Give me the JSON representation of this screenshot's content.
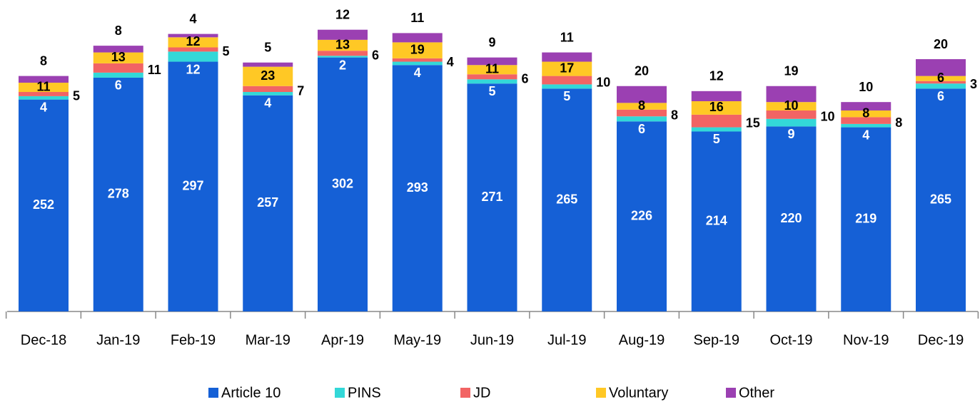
{
  "chart_data": {
    "type": "stacked_bar",
    "categories": [
      "Dec-18",
      "Jan-19",
      "Feb-19",
      "Mar-19",
      "Apr-19",
      "May-19",
      "Jun-19",
      "Jul-19",
      "Aug-19",
      "Sep-19",
      "Oct-19",
      "Nov-19",
      "Dec-19"
    ],
    "series": [
      {
        "name": "Article 10",
        "color": "#1560d6",
        "values": [
          252,
          278,
          297,
          257,
          302,
          293,
          271,
          265,
          226,
          214,
          220,
          219,
          265
        ]
      },
      {
        "name": "PINS",
        "color": "#33d8d8",
        "values": [
          4,
          6,
          12,
          4,
          2,
          4,
          5,
          5,
          6,
          5,
          9,
          4,
          6
        ]
      },
      {
        "name": "JD",
        "color": "#f26464",
        "values": [
          5,
          11,
          5,
          7,
          6,
          4,
          6,
          10,
          8,
          15,
          10,
          8,
          3
        ]
      },
      {
        "name": "Voluntary",
        "color": "#ffc825",
        "values": [
          11,
          13,
          12,
          23,
          13,
          19,
          11,
          17,
          8,
          16,
          10,
          8,
          6
        ]
      },
      {
        "name": "Other",
        "color": "#9b40b2",
        "values": [
          8,
          8,
          4,
          5,
          12,
          11,
          9,
          11,
          20,
          12,
          19,
          10,
          20
        ]
      }
    ],
    "legend": "bottom"
  }
}
